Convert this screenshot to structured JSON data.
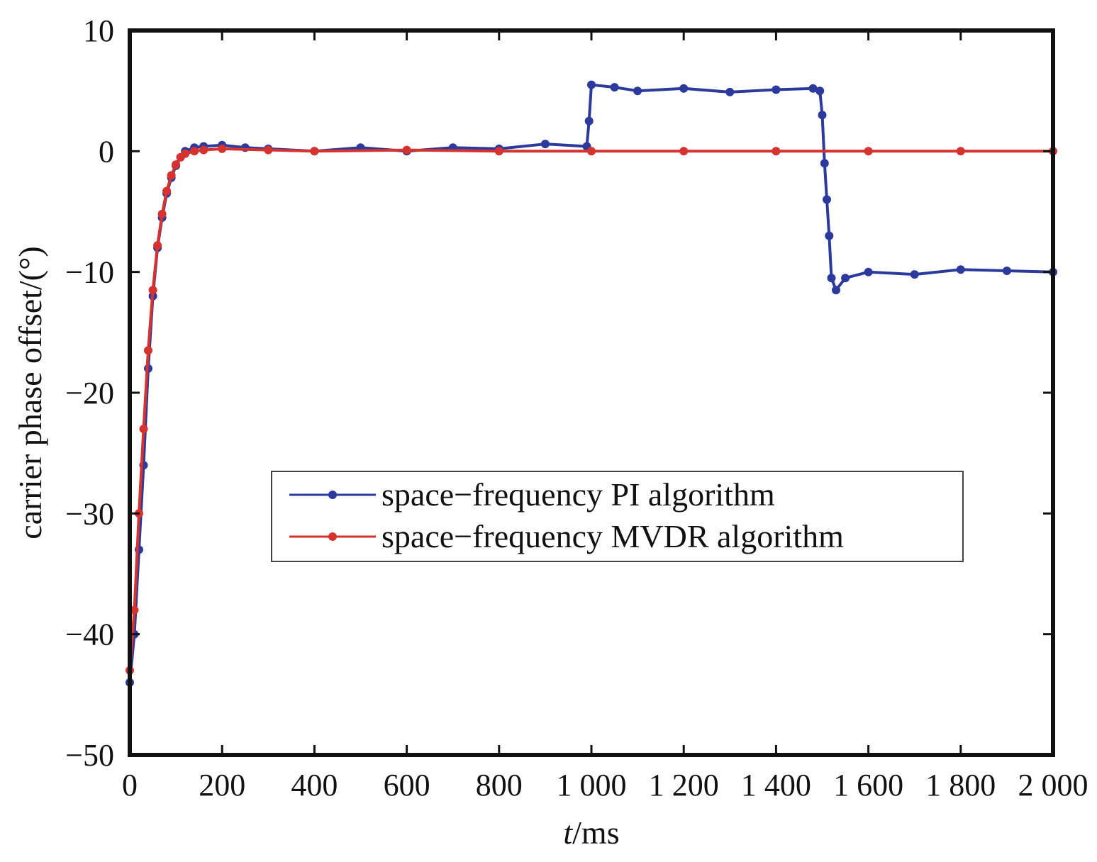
{
  "chart_data": {
    "type": "line",
    "title": "",
    "xlabel_italic": "t",
    "xlabel_unit": "/ms",
    "ylabel": "carrier phase offset/(°)",
    "xlim": [
      0,
      2000
    ],
    "ylim": [
      -50,
      10
    ],
    "x_ticks": [
      0,
      200,
      400,
      600,
      800,
      1000,
      1200,
      1400,
      1600,
      1800,
      2000
    ],
    "x_tick_labels": [
      "0",
      "200",
      "400",
      "600",
      "800",
      "1 000",
      "1 200",
      "1 400",
      "1 600",
      "1 800",
      "2 000"
    ],
    "y_ticks": [
      10,
      0,
      -10,
      -20,
      -30,
      -40,
      -50
    ],
    "y_tick_labels": [
      "10",
      "0",
      "−10",
      "−20",
      "−30",
      "−40",
      "−50"
    ],
    "grid": false,
    "legend_position": "center-right",
    "series": [
      {
        "name": "space−frequency PI algorithm",
        "color": "#2b3a9c",
        "x": [
          0,
          10,
          20,
          30,
          40,
          50,
          60,
          70,
          80,
          90,
          100,
          110,
          120,
          140,
          160,
          200,
          250,
          300,
          400,
          500,
          600,
          700,
          800,
          900,
          990,
          995,
          1000,
          1050,
          1100,
          1200,
          1300,
          1400,
          1480,
          1495,
          1500,
          1505,
          1510,
          1515,
          1520,
          1530,
          1550,
          1600,
          1700,
          1800,
          1900,
          2000
        ],
        "y": [
          -44,
          -40,
          -33,
          -26,
          -18,
          -12,
          -8,
          -5.5,
          -3.5,
          -2.2,
          -1.2,
          -0.5,
          0,
          0.3,
          0.4,
          0.5,
          0.3,
          0.2,
          0,
          0.3,
          0,
          0.3,
          0.2,
          0.6,
          0.4,
          2.5,
          5.5,
          5.3,
          5,
          5.2,
          4.9,
          5.1,
          5.2,
          5,
          3,
          -1,
          -4,
          -7,
          -10.5,
          -11.5,
          -10.5,
          -10,
          -10.2,
          -9.8,
          -9.9,
          -10
        ]
      },
      {
        "name": "space−frequency MVDR algorithm",
        "color": "#d6322e",
        "x": [
          0,
          10,
          20,
          30,
          40,
          50,
          60,
          70,
          80,
          90,
          100,
          110,
          120,
          140,
          160,
          200,
          300,
          400,
          600,
          800,
          1000,
          1200,
          1400,
          1600,
          1800,
          2000
        ],
        "y": [
          -43,
          -38,
          -30,
          -23,
          -16.5,
          -11.5,
          -7.8,
          -5.2,
          -3.3,
          -2,
          -1.1,
          -0.5,
          -0.2,
          0,
          0.1,
          0.2,
          0.1,
          0,
          0.1,
          0,
          0,
          0,
          0,
          0,
          0,
          0
        ]
      }
    ]
  }
}
